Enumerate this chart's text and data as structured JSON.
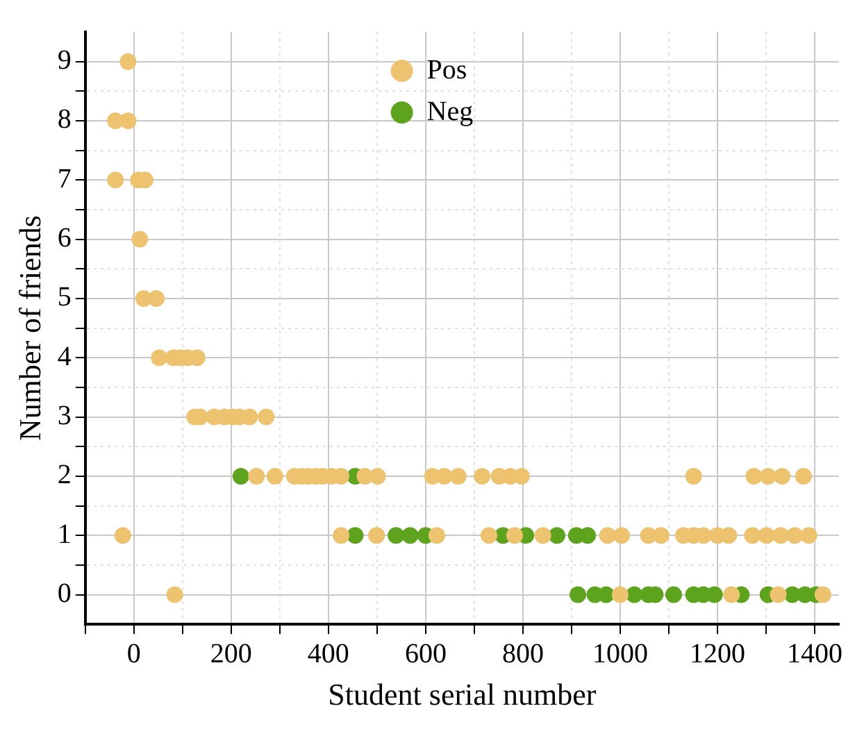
{
  "chart_data": {
    "type": "scatter",
    "xlabel": "Student serial number",
    "ylabel": "Number of friends",
    "xlim": [
      -100,
      1450
    ],
    "ylim": [
      -0.5,
      9.5
    ],
    "xticks": [
      {
        "value": -100,
        "label": null
      },
      0,
      {
        "value": 100,
        "label": null
      },
      200,
      {
        "value": 300,
        "label": null
      },
      400,
      {
        "value": 500,
        "label": null
      },
      600,
      {
        "value": 700,
        "label": null
      },
      800,
      {
        "value": 900,
        "label": null
      },
      1000,
      {
        "value": 1100,
        "label": null
      },
      1200,
      {
        "value": 1300,
        "label": null
      },
      1400
    ],
    "yticks": [
      0,
      {
        "value": 0.5,
        "label": null
      },
      1,
      {
        "value": 1.5,
        "label": null
      },
      2,
      {
        "value": 2.5,
        "label": null
      },
      3,
      {
        "value": 3.5,
        "label": null
      },
      4,
      {
        "value": 4.5,
        "label": null
      },
      5,
      {
        "value": 5.5,
        "label": null
      },
      6,
      {
        "value": 6.5,
        "label": null
      },
      7,
      {
        "value": 7.5,
        "label": null
      },
      8,
      {
        "value": 8.5,
        "label": null
      },
      9
    ],
    "grid": true,
    "legend": "top",
    "marker": "circle",
    "series": [
      {
        "name": "Pos",
        "color": "#edc36f",
        "x": [
          -12,
          -38,
          -12,
          -38,
          9,
          23,
          12,
          20,
          46,
          52,
          81,
          96,
          110,
          130,
          125,
          136,
          165,
          186,
          203,
          217,
          238,
          272,
          252,
          290,
          330,
          345,
          359,
          374,
          388,
          406,
          426,
          475,
          501,
          614,
          638,
          667,
          716,
          751,
          774,
          797,
          1151,
          1275,
          1304,
          1333,
          1377,
          -23,
          426,
          499,
          623,
          730,
          783,
          841,
          974,
          1003,
          1058,
          1084,
          1130,
          1151,
          1171,
          1200,
          1223,
          1272,
          1301,
          1330,
          1359,
          1388,
          84,
          1000,
          1229,
          1325,
          1417
        ],
        "values": [
          9,
          8,
          8,
          7,
          7,
          7,
          6,
          5,
          5,
          4,
          4,
          4,
          4,
          4,
          3,
          3,
          3,
          3,
          3,
          3,
          3,
          3,
          2,
          2,
          2,
          2,
          2,
          2,
          2,
          2,
          2,
          2,
          2,
          2,
          2,
          2,
          2,
          2,
          2,
          2,
          2,
          2,
          2,
          2,
          2,
          1,
          1,
          1,
          1,
          1,
          1,
          1,
          1,
          1,
          1,
          1,
          1,
          1,
          1,
          1,
          1,
          1,
          1,
          1,
          1,
          1,
          0,
          0,
          0,
          0,
          0
        ]
      },
      {
        "name": "Neg",
        "color": "#5ea31e",
        "x": [
          220,
          455,
          455,
          539,
          568,
          600,
          759,
          806,
          870,
          910,
          933,
          913,
          948,
          971,
          1029,
          1058,
          1072,
          1110,
          1151,
          1171,
          1194,
          1249,
          1304,
          1354,
          1380,
          1403
        ],
        "values": [
          2,
          2,
          1,
          1,
          1,
          1,
          1,
          1,
          1,
          1,
          1,
          0,
          0,
          0,
          0,
          0,
          0,
          0,
          0,
          0,
          0,
          0,
          0,
          0,
          0,
          0
        ]
      }
    ]
  }
}
